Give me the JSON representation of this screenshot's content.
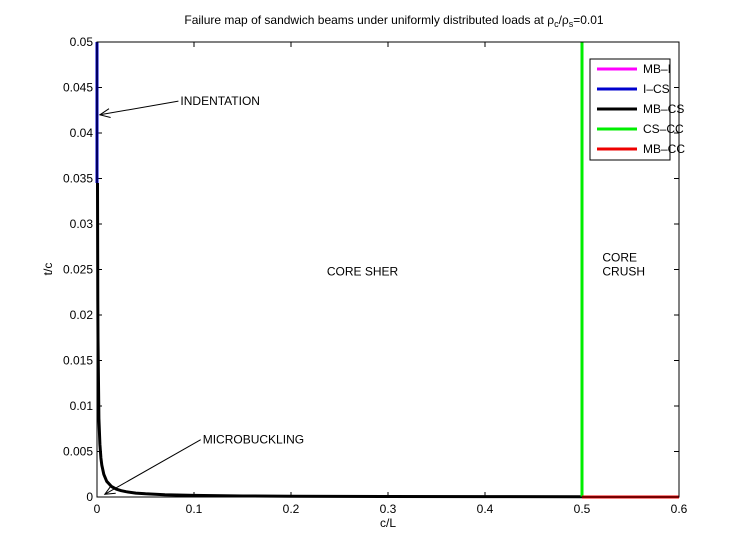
{
  "chart_data": {
    "type": "line",
    "title": {
      "main": "Failure map of sandwich beams under uniformly distributed loads at ",
      "rho1": "ρ",
      "sub1": "c",
      "slash": "/",
      "rho2": "ρ",
      "sub2": "s",
      "tail": "=0.01"
    },
    "xlabel": "c/L",
    "ylabel": "t/c",
    "xlim": [
      0,
      0.6
    ],
    "ylim": [
      0,
      0.05
    ],
    "xticks": [
      0,
      0.1,
      0.2,
      0.3,
      0.4,
      0.5,
      0.6
    ],
    "xtick_labels": [
      "0",
      "0.1",
      "0.2",
      "0.3",
      "0.4",
      "0.5",
      "0.6"
    ],
    "yticks": [
      0,
      0.005,
      0.01,
      0.015,
      0.02,
      0.025,
      0.03,
      0.035,
      0.04,
      0.045,
      0.05
    ],
    "ytick_labels": [
      "0",
      "0.005",
      "0.01",
      "0.015",
      "0.02",
      "0.025",
      "0.03",
      "0.035",
      "0.04",
      "0.045",
      "0.05"
    ],
    "grid": false,
    "legend_position": "top-right",
    "series": [
      {
        "name": "MB–I",
        "color": "#ff00ff",
        "x": [],
        "y": []
      },
      {
        "name": "I–CS",
        "color": "#0000cc",
        "x": [
          0,
          0
        ],
        "y": [
          0.0345,
          0.05
        ]
      },
      {
        "name": "MB–CS",
        "color": "#000000",
        "x": [
          0.0005,
          0.0008,
          0.001,
          0.002,
          0.003,
          0.004,
          0.005,
          0.007,
          0.01,
          0.015,
          0.02,
          0.025,
          0.03,
          0.04,
          0.05,
          0.07,
          0.1,
          0.15,
          0.2,
          0.3,
          0.4,
          0.5
        ],
        "y": [
          0.0345,
          0.0216,
          0.0173,
          0.0086,
          0.0058,
          0.0043,
          0.0035,
          0.0025,
          0.00173,
          0.00115,
          0.00086,
          0.00069,
          0.00058,
          0.00043,
          0.00035,
          0.00025,
          0.000173,
          0.000115,
          8.6e-05,
          5.8e-05,
          4.3e-05,
          3.5e-05
        ]
      },
      {
        "name": "CS–CC",
        "color": "#00ee00",
        "x": [
          0.5,
          0.5
        ],
        "y": [
          0,
          0.05
        ]
      },
      {
        "name": "MB–CC",
        "color": "#ee0000",
        "x": [
          0.5,
          0.6
        ],
        "y": [
          0,
          0
        ]
      }
    ],
    "annotations": [
      {
        "text": "INDENTATION",
        "x": 0.086,
        "y": 0.0435,
        "arrow_to": [
          0.003,
          0.042
        ]
      },
      {
        "text": "MICROBUCKLING",
        "x": 0.109,
        "y": 0.0063,
        "arrow_to": [
          0.008,
          0.0003
        ]
      }
    ],
    "region_labels": [
      {
        "text": "CORE SHER",
        "x": 0.237,
        "y": 0.0248
      },
      {
        "text": "CORE",
        "x": 0.521,
        "y": 0.0263
      },
      {
        "text": "CRUSH",
        "x": 0.521,
        "y": 0.0248
      }
    ]
  }
}
